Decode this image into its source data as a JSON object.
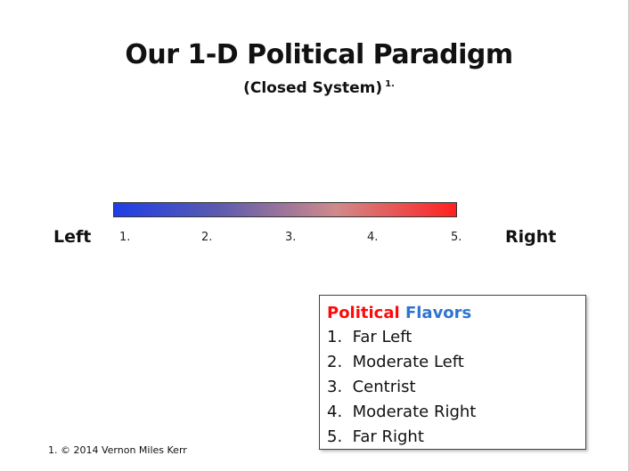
{
  "title": "Our 1-D Political Paradigm",
  "subtitle": "(Closed System)",
  "subtitle_note": "1.",
  "spectrum": {
    "left_label": "Left",
    "right_label": "Right",
    "ticks": [
      "1.",
      "2.",
      "3.",
      "4.",
      "5."
    ],
    "colors": {
      "left": "#1f3ee6",
      "middle": "#d08a8a",
      "right": "#ff2020"
    }
  },
  "legend": {
    "title_part1": "Political",
    "title_part2": "Flavors",
    "title_part1_color": "#ff0a0a",
    "title_part2_color": "#2f74d0",
    "items": [
      "1.  Far Left",
      "2.  Moderate Left",
      "3.  Centrist",
      "4.  Moderate Right",
      "5.  Far Right"
    ]
  },
  "footnote": "1. © 2014 Vernon Miles Kerr"
}
